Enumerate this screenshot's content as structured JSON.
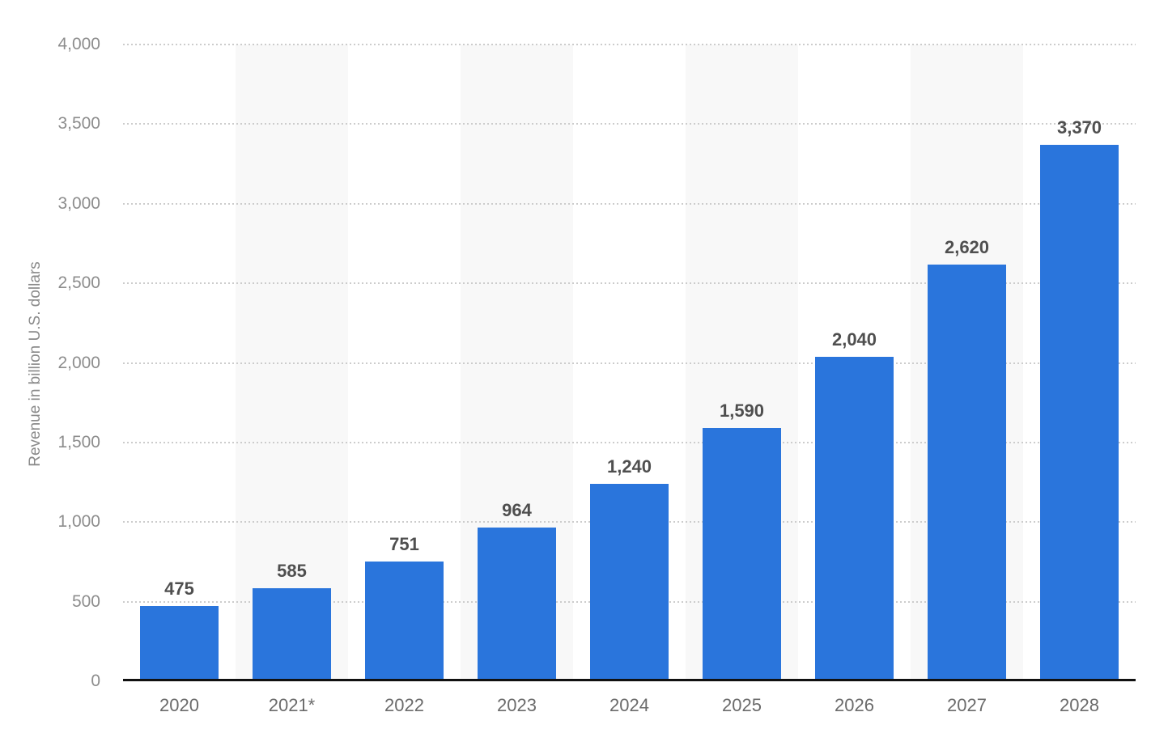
{
  "chart_data": {
    "type": "bar",
    "title": "",
    "categories": [
      "2020",
      "2021*",
      "2022",
      "2023",
      "2024",
      "2025",
      "2026",
      "2027",
      "2028"
    ],
    "values": [
      475,
      585,
      751,
      964,
      1240,
      1590,
      2040,
      2620,
      3370
    ],
    "bar_labels": [
      "475",
      "585",
      "751",
      "964",
      "1,240",
      "1,590",
      "2,040",
      "2,620",
      "3,370"
    ],
    "xlabel": "",
    "ylabel": "Revenue in billion U.S. dollars",
    "ylim": [
      0,
      4000
    ],
    "ytick_step": 500,
    "yticks": [
      {
        "value": 4000,
        "label": "4,000"
      },
      {
        "value": 3500,
        "label": "3,500"
      },
      {
        "value": 3000,
        "label": "3,000"
      },
      {
        "value": 2500,
        "label": "2,500"
      },
      {
        "value": 2000,
        "label": "2,000"
      },
      {
        "value": 1500,
        "label": "1,500"
      },
      {
        "value": 1000,
        "label": "1,000"
      },
      {
        "value": 500,
        "label": "500"
      },
      {
        "value": 0,
        "label": "0"
      }
    ],
    "grid": "horizontal-dotted",
    "legend": "none",
    "striped_category_indexes": [
      1,
      3,
      5,
      7
    ],
    "colors": {
      "bar": "#2a75dc",
      "bar_label": "#4f4f4f",
      "x_tick": "#6b6b6b",
      "y_tick": "#8d8d8d",
      "y_title": "#8a8a8a",
      "gridline": "#cccccc",
      "stripe": "#f8f8f8",
      "axis_line": "#111111",
      "background": "#ffffff"
    }
  }
}
